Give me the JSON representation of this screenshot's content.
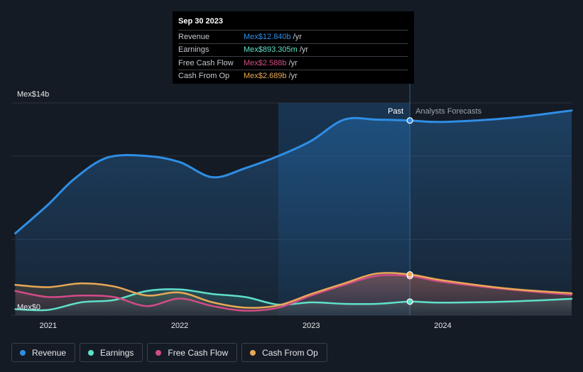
{
  "chart_data": {
    "type": "line",
    "title": "",
    "currency_prefix": "Mex$",
    "y_axis_top_label": "Mex$14b",
    "y_axis_bottom_label": "Mex$0",
    "ylim": [
      0,
      14
    ],
    "xlim": [
      2020.72,
      2024.98
    ],
    "x_ticks": [
      {
        "value": 2021,
        "label": "2021"
      },
      {
        "value": 2022,
        "label": "2022"
      },
      {
        "value": 2023,
        "label": "2023"
      },
      {
        "value": 2024,
        "label": "2024"
      }
    ],
    "past_label": "Past",
    "forecast_label": "Analysts Forecasts",
    "past_end": 2023.75,
    "shade_start": 2022.75,
    "series": [
      {
        "name": "Revenue",
        "color": "#2f8ee5",
        "points": [
          [
            2020.75,
            5.4
          ],
          [
            2021.0,
            7.3
          ],
          [
            2021.2,
            9.0
          ],
          [
            2021.45,
            10.4
          ],
          [
            2021.75,
            10.5
          ],
          [
            2022.0,
            10.1
          ],
          [
            2022.25,
            9.1
          ],
          [
            2022.5,
            9.7
          ],
          [
            2022.75,
            10.5
          ],
          [
            2023.0,
            11.5
          ],
          [
            2023.25,
            12.9
          ],
          [
            2023.5,
            12.9
          ],
          [
            2023.75,
            12.84
          ],
          [
            2024.0,
            12.75
          ],
          [
            2024.5,
            13.0
          ],
          [
            2024.98,
            13.5
          ]
        ]
      },
      {
        "name": "Earnings",
        "color": "#5fe0c9",
        "points": [
          [
            2020.75,
            0.4
          ],
          [
            2021.0,
            0.35
          ],
          [
            2021.25,
            0.85
          ],
          [
            2021.5,
            1.0
          ],
          [
            2021.75,
            1.6
          ],
          [
            2022.0,
            1.7
          ],
          [
            2022.25,
            1.4
          ],
          [
            2022.5,
            1.2
          ],
          [
            2022.75,
            0.7
          ],
          [
            2023.0,
            0.85
          ],
          [
            2023.25,
            0.75
          ],
          [
            2023.5,
            0.75
          ],
          [
            2023.75,
            0.893
          ],
          [
            2024.0,
            0.83
          ],
          [
            2024.5,
            0.9
          ],
          [
            2024.98,
            1.08
          ]
        ]
      },
      {
        "name": "Free Cash Flow",
        "color": "#d24b87",
        "points": [
          [
            2020.75,
            1.6
          ],
          [
            2021.0,
            1.2
          ],
          [
            2021.25,
            1.3
          ],
          [
            2021.5,
            1.2
          ],
          [
            2021.75,
            0.6
          ],
          [
            2022.0,
            1.1
          ],
          [
            2022.25,
            0.6
          ],
          [
            2022.5,
            0.3
          ],
          [
            2022.75,
            0.5
          ],
          [
            2023.0,
            1.3
          ],
          [
            2023.25,
            2.0
          ],
          [
            2023.5,
            2.6
          ],
          [
            2023.75,
            2.588
          ],
          [
            2024.0,
            2.2
          ],
          [
            2024.5,
            1.7
          ],
          [
            2024.98,
            1.35
          ]
        ]
      },
      {
        "name": "Cash From Op",
        "color": "#e8a856",
        "points": [
          [
            2020.75,
            2.0
          ],
          [
            2021.0,
            1.85
          ],
          [
            2021.25,
            2.1
          ],
          [
            2021.5,
            1.9
          ],
          [
            2021.75,
            1.3
          ],
          [
            2022.0,
            1.5
          ],
          [
            2022.25,
            0.85
          ],
          [
            2022.5,
            0.5
          ],
          [
            2022.75,
            0.65
          ],
          [
            2023.0,
            1.4
          ],
          [
            2023.25,
            2.1
          ],
          [
            2023.5,
            2.75
          ],
          [
            2023.75,
            2.689
          ],
          [
            2024.0,
            2.3
          ],
          [
            2024.5,
            1.75
          ],
          [
            2024.98,
            1.45
          ]
        ]
      }
    ]
  },
  "tooltip": {
    "date": "Sep 30 2023",
    "rows": [
      {
        "label": "Revenue",
        "value": "Mex$12.840b",
        "unit": "/yr",
        "color": "#2f8ee5"
      },
      {
        "label": "Earnings",
        "value": "Mex$893.305m",
        "unit": "/yr",
        "color": "#5fe0c9"
      },
      {
        "label": "Free Cash Flow",
        "value": "Mex$2.588b",
        "unit": "/yr",
        "color": "#d24b87"
      },
      {
        "label": "Cash From Op",
        "value": "Mex$2.689b",
        "unit": "/yr",
        "color": "#e8a856"
      }
    ]
  },
  "legend": [
    {
      "label": "Revenue",
      "color": "#2f8ee5"
    },
    {
      "label": "Earnings",
      "color": "#5fe0c9"
    },
    {
      "label": "Free Cash Flow",
      "color": "#d24b87"
    },
    {
      "label": "Cash From Op",
      "color": "#e8a856"
    }
  ]
}
